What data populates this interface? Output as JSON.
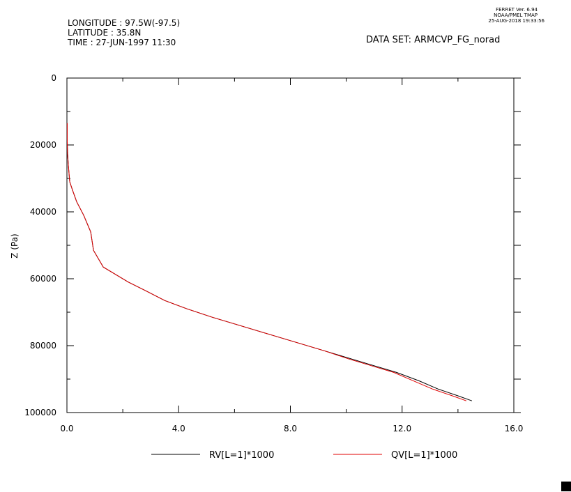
{
  "header": {
    "longitude": "LONGITUDE : 97.5W(-97.5)",
    "latitude": "LATITUDE : 35.8N",
    "time": "TIME : 27-JUN-1997 11:30",
    "dataset": "DATA SET: ARMCVP_FG_norad",
    "ferret_version": "FERRET Ver. 6.94",
    "ferret_org": "NOAA/PMEL TMAP",
    "ferret_date": "25-AUG-2018 19:33:56"
  },
  "chart_data": {
    "type": "line",
    "xlabel": "",
    "ylabel": "Z (Pa)",
    "xlim": [
      0,
      16
    ],
    "ylim": [
      0,
      100000
    ],
    "y_inverted": true,
    "x_ticks": [
      0,
      4,
      8,
      12,
      16
    ],
    "x_tick_labels": [
      "0.0",
      "4.0",
      "8.0",
      "12.0",
      "16.0"
    ],
    "y_ticks": [
      0,
      20000,
      40000,
      60000,
      80000,
      100000
    ],
    "y_tick_labels": [
      "0",
      "20000",
      "40000",
      "60000",
      "80000",
      "100000"
    ],
    "grid": false,
    "legend_position": "bottom",
    "series": [
      {
        "name": "RV[L=1]*1000",
        "color": "#000000",
        "x": [
          0.01,
          0.01,
          0.02,
          0.05,
          0.1,
          0.2,
          0.35,
          0.6,
          0.85,
          0.95,
          1.3,
          1.7,
          2.2,
          2.8,
          3.5,
          4.3,
          5.2,
          6.2,
          7.2,
          8.2,
          9.2,
          10.2,
          11.0,
          11.8,
          12.6,
          13.3,
          14.0,
          14.5
        ],
        "y": [
          13500,
          18000,
          22000,
          26000,
          31000,
          33500,
          37000,
          41000,
          46000,
          51500,
          56500,
          58500,
          61000,
          63500,
          66500,
          69000,
          71500,
          74000,
          76500,
          79000,
          81500,
          84000,
          86000,
          88000,
          90500,
          93000,
          95000,
          96500
        ]
      },
      {
        "name": "QV[L=1]*1000",
        "color": "#e00000",
        "x": [
          0.01,
          0.01,
          0.02,
          0.05,
          0.1,
          0.2,
          0.35,
          0.6,
          0.85,
          0.95,
          1.3,
          1.7,
          2.2,
          2.8,
          3.5,
          4.3,
          5.2,
          6.2,
          7.2,
          8.2,
          9.2,
          10.1,
          10.9,
          11.7,
          12.4,
          13.1,
          13.8,
          14.3
        ],
        "y": [
          13500,
          18000,
          22000,
          26000,
          31000,
          33500,
          37000,
          41000,
          46000,
          51500,
          56500,
          58500,
          61000,
          63500,
          66500,
          69000,
          71500,
          74000,
          76500,
          79000,
          81500,
          84000,
          86000,
          88000,
          90500,
          93000,
          95000,
          96500
        ]
      }
    ]
  }
}
